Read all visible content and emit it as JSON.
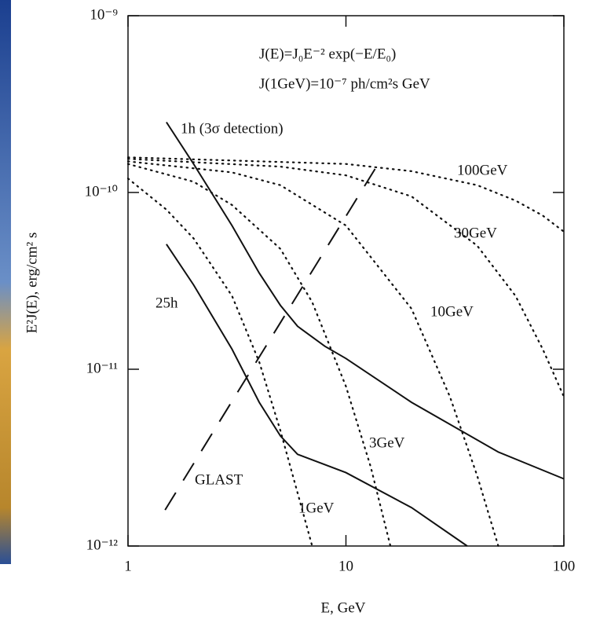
{
  "chart_data": {
    "type": "line",
    "xlabel": "E, GeV",
    "ylabel": "E²J(E),  erg/cm² s",
    "xscale": "log",
    "yscale": "log",
    "xlim": [
      1,
      100
    ],
    "ylim": [
      1e-12,
      1e-09
    ],
    "xticks": [
      1,
      10,
      100
    ],
    "yticks": [
      {
        "value": 1e-12,
        "label": "10⁻¹²"
      },
      {
        "value": 1e-11,
        "label": "10⁻¹¹"
      },
      {
        "value": 1e-10,
        "label": "10⁻¹⁰"
      },
      {
        "value": 1e-09,
        "label": "10⁻⁹"
      }
    ],
    "annotations": [
      "J(E)=J₀E⁻² exp(−E/E₀)",
      "J(1GeV)=10⁻⁷ ph/cm²s GeV"
    ],
    "series": [
      {
        "name": "1h (3σ detection)",
        "color": "#111111",
        "style": "solid",
        "x": [
          1.5,
          2,
          3,
          4,
          5,
          6,
          8,
          10,
          20,
          50,
          100
        ],
        "values": [
          2.5e-10,
          1.45e-10,
          6.5e-11,
          3.5e-11,
          2.3e-11,
          1.75e-11,
          1.35e-11,
          1.15e-11,
          6.5e-12,
          3.4e-12,
          2.4e-12
        ]
      },
      {
        "name": "25h",
        "color": "#111111",
        "style": "solid",
        "x": [
          1.5,
          2,
          3,
          4,
          5,
          6,
          10,
          20,
          36
        ],
        "values": [
          5.1e-11,
          3e-11,
          1.3e-11,
          6.5e-12,
          4.2e-12,
          3.3e-12,
          2.6e-12,
          1.65e-12,
          1e-12
        ]
      },
      {
        "name": "GLAST",
        "color": "#111111",
        "style": "dashed",
        "x": [
          1.48,
          13.6
        ],
        "values": [
          1.6e-12,
          1.36e-10
        ]
      },
      {
        "name": "1GeV",
        "color": "#111111",
        "style": "dotted",
        "x": [
          1,
          1.5,
          2,
          3,
          4,
          5,
          6,
          7
        ],
        "values": [
          1.2e-10,
          8e-11,
          5.5e-11,
          2.6e-11,
          1.1e-11,
          4.5e-12,
          2e-12,
          1e-12
        ]
      },
      {
        "name": "3GeV",
        "color": "#111111",
        "style": "dotted",
        "x": [
          1,
          2,
          3,
          5,
          7,
          10,
          13,
          16
        ],
        "values": [
          1.45e-10,
          1.15e-10,
          8.5e-11,
          4.8e-11,
          2.4e-11,
          8e-12,
          2.8e-12,
          1e-12
        ]
      },
      {
        "name": "10GeV",
        "color": "#111111",
        "style": "dotted",
        "x": [
          1,
          3,
          5,
          10,
          20,
          30,
          40,
          50
        ],
        "values": [
          1.5e-10,
          1.3e-10,
          1.1e-10,
          6.5e-11,
          2.2e-11,
          7e-12,
          2.5e-12,
          1e-12
        ]
      },
      {
        "name": "30GeV",
        "color": "#111111",
        "style": "dotted",
        "x": [
          1,
          5,
          10,
          20,
          40,
          60,
          80,
          100
        ],
        "values": [
          1.55e-10,
          1.4e-10,
          1.25e-10,
          9.5e-11,
          5e-11,
          2.6e-11,
          1.3e-11,
          7e-12
        ]
      },
      {
        "name": "100GeV",
        "color": "#111111",
        "style": "dotted",
        "x": [
          1,
          10,
          20,
          40,
          60,
          80,
          100
        ],
        "values": [
          1.58e-10,
          1.45e-10,
          1.32e-10,
          1.1e-10,
          9e-11,
          7.4e-11,
          6e-11
        ]
      }
    ]
  }
}
